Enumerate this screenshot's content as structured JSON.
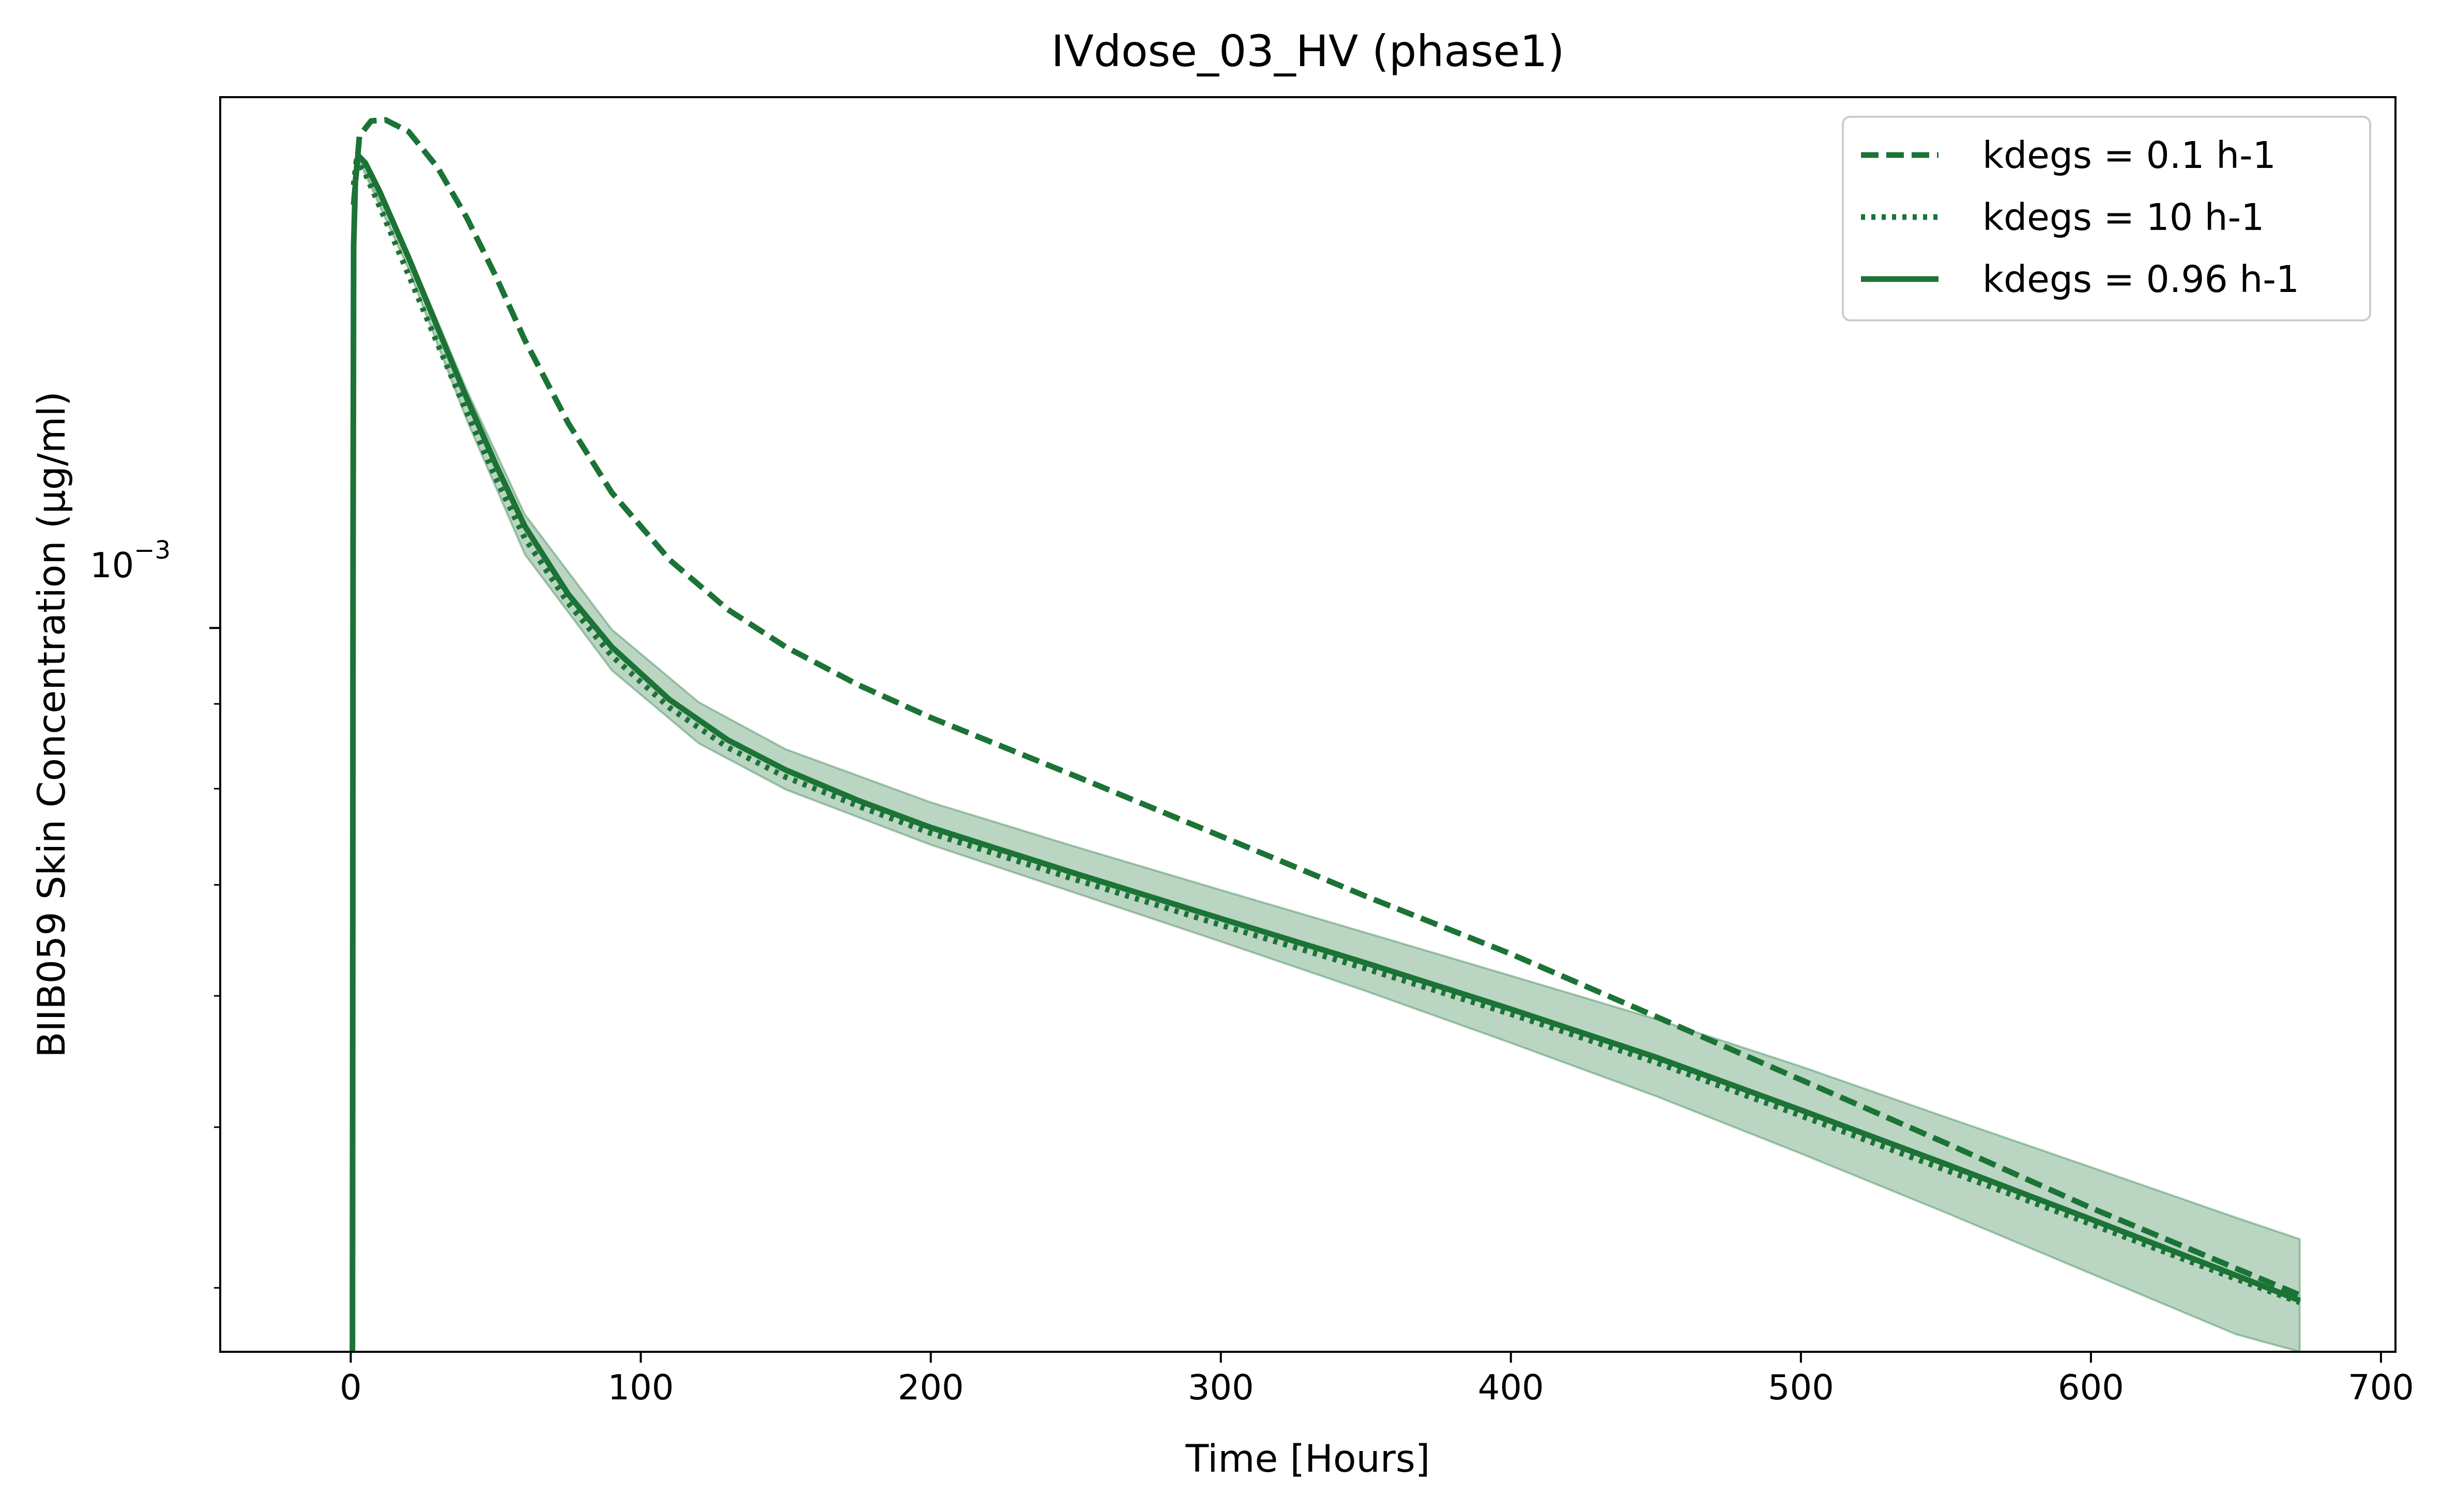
{
  "chart_data": {
    "type": "line",
    "title": "IVdose_03_HV (phase1)",
    "xlabel": "Time [Hours]",
    "ylabel": "BIIB059 Skin Concentration (μg/ml)",
    "xlim": [
      -45,
      705
    ],
    "ylim": [
      0.000366,
      0.00209
    ],
    "yscale": "log",
    "x_ticks": [
      0,
      100,
      200,
      300,
      400,
      500,
      600,
      700
    ],
    "x_tick_labels": [
      "0",
      "100",
      "200",
      "300",
      "400",
      "500",
      "600",
      "700"
    ],
    "y_major_tick": 0.001,
    "y_major_tick_label_base": "10",
    "y_major_tick_label_exp": "−3",
    "y_minor_ticks": [
      0.0004,
      0.0005,
      0.0006,
      0.0007,
      0.0008,
      0.0009
    ],
    "grid": false,
    "legend_position": "top-right",
    "line_color": "#1b7335",
    "band_color": "#1b7335",
    "series": [
      {
        "name": "kdegs = 0.1 h-1",
        "style": "dashed",
        "points": [
          [
            1,
            0.0018
          ],
          [
            3,
            0.00198
          ],
          [
            7,
            0.002022
          ],
          [
            12,
            0.002025
          ],
          [
            20,
            0.001992
          ],
          [
            30,
            0.001895
          ],
          [
            40,
            0.001768
          ],
          [
            50,
            0.00163
          ],
          [
            60,
            0.001492
          ],
          [
            75,
            0.001329
          ],
          [
            90,
            0.001207
          ],
          [
            110,
            0.001099
          ],
          [
            130,
            0.001026
          ],
          [
            150,
            0.000974
          ],
          [
            175,
            0.000924
          ],
          [
            200,
            0.000883
          ],
          [
            250,
            0.000814
          ],
          [
            300,
            0.000749
          ],
          [
            350,
            0.000689
          ],
          [
            400,
            0.000636
          ],
          [
            450,
            0.000583
          ],
          [
            500,
            0.000534
          ],
          [
            550,
            0.000489
          ],
          [
            600,
            0.000447
          ],
          [
            650,
            0.000411
          ],
          [
            672,
            0.000396
          ]
        ]
      },
      {
        "name": "kdegs = 10 h-1",
        "style": "dotted",
        "points": [
          [
            1,
            0.00185
          ],
          [
            2,
            0.001914
          ],
          [
            5,
            0.00188
          ],
          [
            10,
            0.001795
          ],
          [
            20,
            0.001632
          ],
          [
            30,
            0.001483
          ],
          [
            40,
            0.001349
          ],
          [
            50,
            0.001231
          ],
          [
            60,
            0.001133
          ],
          [
            75,
            0.001035
          ],
          [
            90,
            0.000962
          ],
          [
            110,
            0.000895
          ],
          [
            130,
            0.000847
          ],
          [
            150,
            0.000813
          ],
          [
            175,
            0.000781
          ],
          [
            200,
            0.000752
          ],
          [
            250,
            0.000705
          ],
          [
            300,
            0.000662
          ],
          [
            350,
            0.000623
          ],
          [
            400,
            0.000585
          ],
          [
            450,
            0.000547
          ],
          [
            500,
            0.000508
          ],
          [
            550,
            0.000471
          ],
          [
            600,
            0.000437
          ],
          [
            650,
            0.000405
          ],
          [
            672,
            0.000392
          ]
        ]
      },
      {
        "name": "kdegs = 0.96 h-1",
        "style": "solid",
        "points": [
          [
            0.6,
            0.00034
          ],
          [
            0.8,
            0.0011
          ],
          [
            1,
            0.0017
          ],
          [
            1.6,
            0.00186
          ],
          [
            2.5,
            0.001928
          ],
          [
            5,
            0.001908
          ],
          [
            10,
            0.001833
          ],
          [
            20,
            0.001672
          ],
          [
            30,
            0.001517
          ],
          [
            40,
            0.001376
          ],
          [
            50,
            0.001255
          ],
          [
            60,
            0.001152
          ],
          [
            75,
            0.001048
          ],
          [
            90,
            0.000974
          ],
          [
            110,
            0.000905
          ],
          [
            130,
            0.000856
          ],
          [
            150,
            0.000821
          ],
          [
            175,
            0.000787
          ],
          [
            200,
            0.000758
          ],
          [
            250,
            0.000711
          ],
          [
            300,
            0.000668
          ],
          [
            350,
            0.000628
          ],
          [
            400,
            0.000589
          ],
          [
            450,
            0.000551
          ],
          [
            500,
            0.000512
          ],
          [
            550,
            0.000475
          ],
          [
            600,
            0.00044
          ],
          [
            650,
            0.000407
          ],
          [
            672,
            0.000393
          ]
        ]
      }
    ],
    "band": {
      "upper": [
        [
          2,
          0.001928
        ],
        [
          20,
          0.001682
        ],
        [
          40,
          0.001392
        ],
        [
          60,
          0.001171
        ],
        [
          90,
          0.000998
        ],
        [
          120,
          0.000902
        ],
        [
          150,
          0.000845
        ],
        [
          200,
          0.000785
        ],
        [
          250,
          0.000738
        ],
        [
          300,
          0.000695
        ],
        [
          350,
          0.000655
        ],
        [
          400,
          0.000617
        ],
        [
          450,
          0.000581
        ],
        [
          500,
          0.000544
        ],
        [
          550,
          0.000507
        ],
        [
          600,
          0.000473
        ],
        [
          650,
          0.000441
        ],
        [
          672,
          0.000428
        ]
      ],
      "lower": [
        [
          2,
          0.001928
        ],
        [
          20,
          0.001645
        ],
        [
          40,
          0.001335
        ],
        [
          60,
          0.001108
        ],
        [
          90,
          0.000943
        ],
        [
          120,
          0.000852
        ],
        [
          150,
          0.000799
        ],
        [
          200,
          0.00074
        ],
        [
          250,
          0.000692
        ],
        [
          300,
          0.000647
        ],
        [
          350,
          0.000604
        ],
        [
          400,
          0.000562
        ],
        [
          450,
          0.000522
        ],
        [
          500,
          0.000482
        ],
        [
          550,
          0.000444
        ],
        [
          600,
          0.000408
        ],
        [
          650,
          0.000375
        ],
        [
          672,
          0.000362
        ]
      ]
    }
  }
}
